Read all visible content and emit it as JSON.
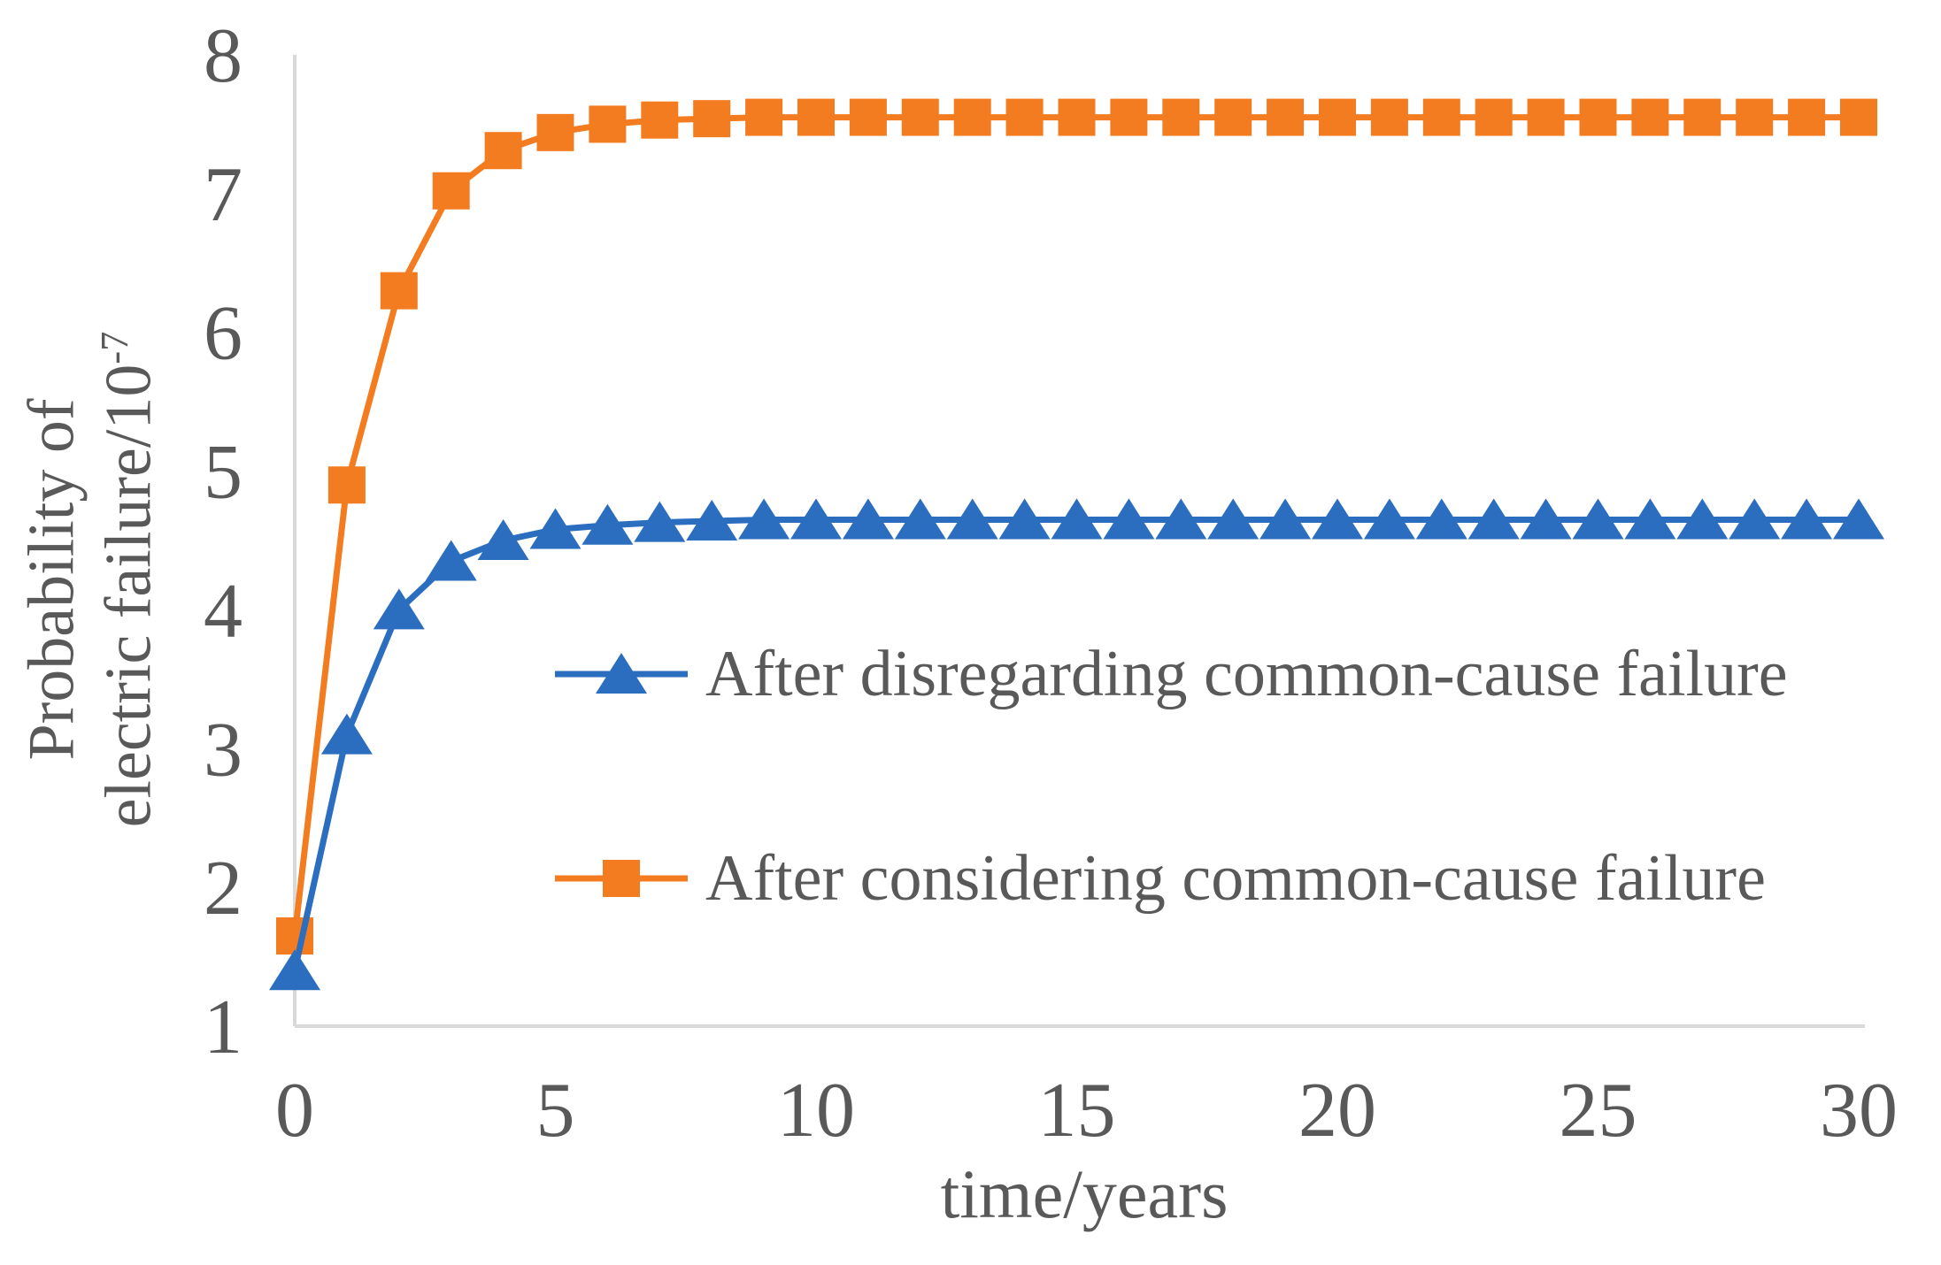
{
  "chart_data": {
    "type": "line",
    "title": "",
    "xlabel": "time/years",
    "ylabel_line1": "Probability of",
    "ylabel_line2_base": "electric failure/10",
    "ylabel_line2_sup": "-7",
    "xlim": [
      0,
      30
    ],
    "ylim": [
      1,
      8
    ],
    "x_ticks": [
      0,
      5,
      10,
      15,
      20,
      25,
      30
    ],
    "y_ticks": [
      1,
      2,
      3,
      4,
      5,
      6,
      7,
      8
    ],
    "grid": false,
    "legend_position": "inside-center-left",
    "x": [
      0,
      1,
      2,
      3,
      4,
      5,
      6,
      7,
      8,
      9,
      10,
      11,
      12,
      13,
      14,
      15,
      16,
      17,
      18,
      19,
      20,
      21,
      22,
      23,
      24,
      25,
      26,
      27,
      28,
      29,
      30
    ],
    "series": [
      {
        "name": "After disregarding common-cause failure",
        "marker": "triangle",
        "color": "#2B6EBF",
        "values": [
          1.4,
          3.1,
          4.0,
          4.35,
          4.5,
          4.58,
          4.61,
          4.63,
          4.64,
          4.65,
          4.65,
          4.65,
          4.65,
          4.65,
          4.65,
          4.65,
          4.65,
          4.65,
          4.65,
          4.65,
          4.65,
          4.65,
          4.65,
          4.65,
          4.65,
          4.65,
          4.65,
          4.65,
          4.65,
          4.65,
          4.65
        ]
      },
      {
        "name": "After considering common-cause failure",
        "marker": "square",
        "color": "#F47C20",
        "values": [
          1.65,
          4.9,
          6.3,
          7.02,
          7.31,
          7.44,
          7.5,
          7.53,
          7.54,
          7.55,
          7.55,
          7.55,
          7.55,
          7.55,
          7.55,
          7.55,
          7.55,
          7.55,
          7.55,
          7.55,
          7.55,
          7.55,
          7.55,
          7.55,
          7.55,
          7.55,
          7.55,
          7.55,
          7.55,
          7.55,
          7.55
        ]
      }
    ]
  },
  "colors": {
    "text": "#595959",
    "axis": "#D9D9D9",
    "background": "#FFFFFF"
  }
}
